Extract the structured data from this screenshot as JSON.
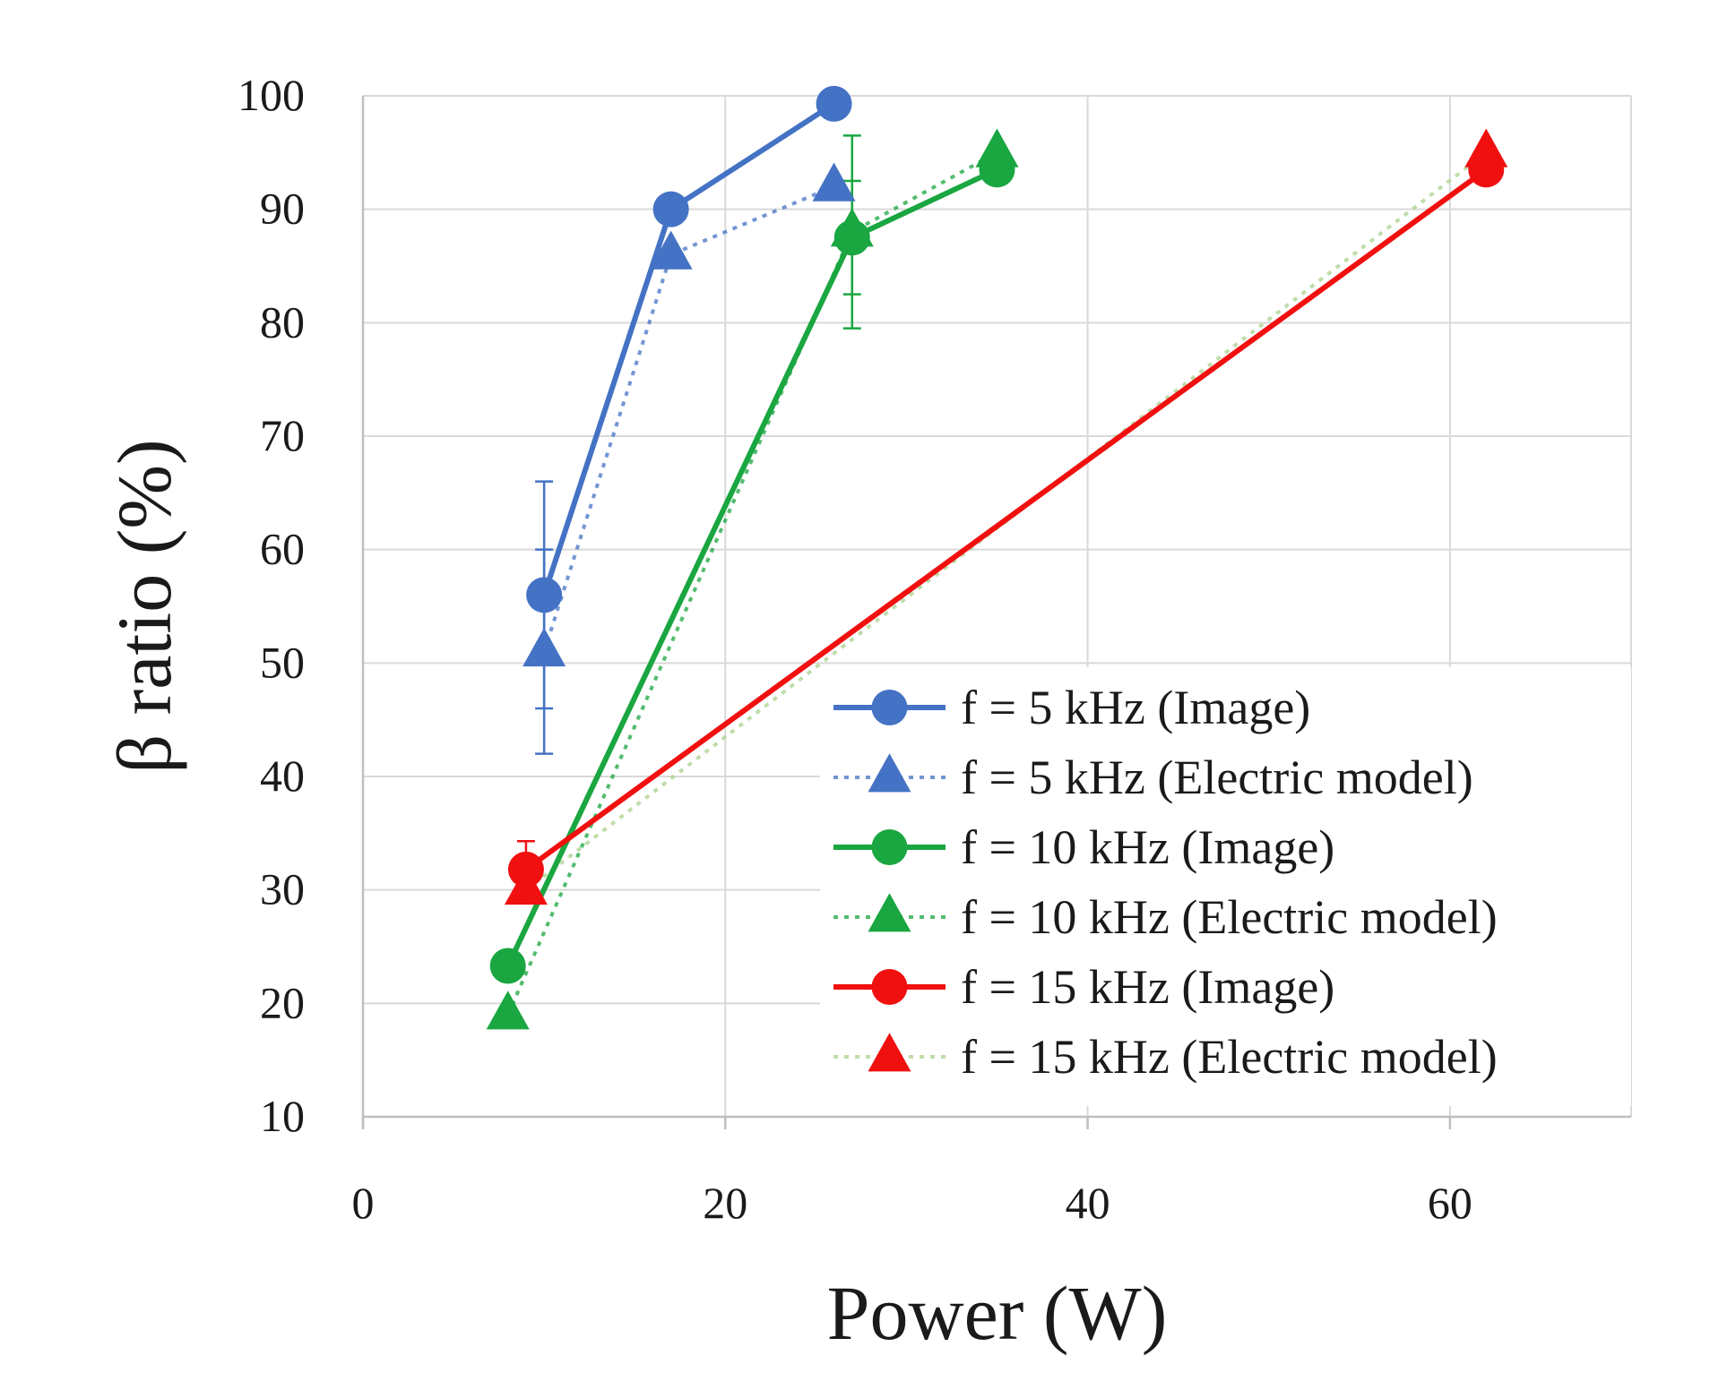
{
  "chart_data": {
    "type": "line",
    "title": "",
    "xlabel": "Power (W)",
    "ylabel": "β ratio (%)",
    "xlim": [
      0,
      70
    ],
    "ylim": [
      10,
      100
    ],
    "xticks": [
      0,
      20,
      40,
      60
    ],
    "yticks": [
      10,
      20,
      30,
      40,
      50,
      60,
      70,
      80,
      90,
      100
    ],
    "grid": true,
    "legend_position": "bottom-right",
    "series": [
      {
        "name": "f = 5 kHz (Image)",
        "color": "#4472C4",
        "line": "solid",
        "marker": "circle",
        "x": [
          10,
          17,
          26
        ],
        "y": [
          56,
          90,
          99.3
        ],
        "error": [
          10,
          null,
          null
        ]
      },
      {
        "name": "f = 5 kHz (Electric model)",
        "color": "#4472C4",
        "line": "dotted",
        "marker": "triangle",
        "x": [
          10,
          17,
          26
        ],
        "y": [
          51,
          86,
          92
        ],
        "error": [
          9,
          null,
          null
        ]
      },
      {
        "name": "f = 10 kHz (Image)",
        "color": "#1AA640",
        "line": "solid",
        "marker": "circle",
        "x": [
          8,
          27,
          35
        ],
        "y": [
          23.3,
          87.5,
          93.5
        ],
        "error": [
          null,
          5,
          null
        ]
      },
      {
        "name": "f = 10 kHz (Electric model)",
        "color": "#1AA640",
        "line": "dotted",
        "marker": "triangle",
        "x": [
          8,
          27,
          35
        ],
        "y": [
          19,
          88,
          95
        ],
        "error": [
          null,
          8.5,
          null
        ]
      },
      {
        "name": "f = 15 kHz (Image)",
        "color": "#F01010",
        "line": "solid",
        "marker": "circle",
        "x": [
          9,
          62
        ],
        "y": [
          31.8,
          93.5
        ],
        "error": [
          2.5,
          null
        ]
      },
      {
        "name": "f = 15 kHz (Electric model)",
        "color": "#F01010",
        "line_color": "#A9D18E",
        "line": "dotted",
        "marker": "triangle",
        "x": [
          9,
          62
        ],
        "y": [
          30,
          95
        ],
        "error": [
          null,
          null
        ]
      }
    ]
  }
}
